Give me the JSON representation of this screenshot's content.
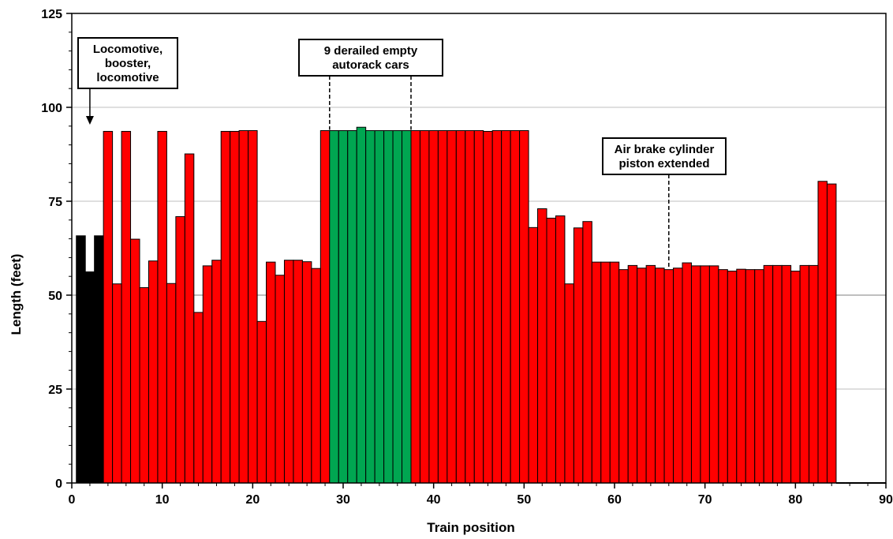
{
  "chart_data": {
    "type": "bar",
    "xlabel": "Train position",
    "ylabel": "Length (feet)",
    "xlim": [
      0,
      90
    ],
    "ylim": [
      0,
      125
    ],
    "x_ticks": [
      0,
      10,
      20,
      30,
      40,
      50,
      60,
      70,
      80,
      90
    ],
    "y_ticks": [
      0,
      25,
      50,
      75,
      100,
      125
    ],
    "grid": "horizontal at 25, 50, 75, 100",
    "colors": {
      "locomotive": "#000000",
      "car": "#ff0000",
      "derailed": "#00a651",
      "gridline": "#bfbfbf",
      "gridline_50": "#7f7f7f"
    },
    "positions": [
      1,
      2,
      3,
      4,
      5,
      6,
      7,
      8,
      9,
      10,
      11,
      12,
      13,
      14,
      15,
      16,
      17,
      18,
      19,
      20,
      21,
      22,
      23,
      24,
      25,
      26,
      27,
      28,
      29,
      30,
      31,
      32,
      33,
      34,
      35,
      36,
      37,
      38,
      39,
      40,
      41,
      42,
      43,
      44,
      45,
      46,
      47,
      48,
      49,
      50,
      51,
      52,
      53,
      54,
      55,
      56,
      57,
      58,
      59,
      60,
      61,
      62,
      63,
      64,
      65,
      66,
      67,
      68,
      69,
      70,
      71,
      72,
      73,
      74,
      75,
      76,
      77,
      78,
      79,
      80,
      81,
      82,
      83,
      84,
      85
    ],
    "lengths": [
      65.8,
      56.2,
      65.8,
      93.6,
      53,
      93.6,
      64.9,
      52,
      59.1,
      93.6,
      53.1,
      70.9,
      87.6,
      45.4,
      57.8,
      59.3,
      93.6,
      93.6,
      93.8,
      93.8,
      43,
      58.8,
      55.3,
      59.3,
      59.3,
      58.9,
      57.1,
      93.8,
      93.8,
      93.8,
      93.8,
      94.7,
      93.8,
      93.8,
      93.8,
      93.8,
      93.8,
      93.8,
      93.8,
      93.8,
      93.8,
      93.8,
      93.8,
      93.8,
      93.8,
      93.6,
      93.8,
      93.8,
      93.8,
      93.8,
      68,
      73,
      70.5,
      71.1,
      53,
      67.9,
      69.6,
      58.8,
      58.8,
      58.8,
      56.8,
      57.9,
      57.2,
      57.9,
      57.2,
      56.8,
      57.2,
      58.6,
      57.8,
      57.8,
      57.8,
      56.8,
      56.4,
      56.9,
      56.8,
      56.8,
      57.9,
      57.9,
      57.9,
      56.4,
      57.9,
      57.9,
      80.3,
      79.6,
      0
    ],
    "groups": [
      {
        "name": "locomotive",
        "from": 1,
        "to": 3
      },
      {
        "name": "derailed",
        "from": 29,
        "to": 37
      },
      {
        "name": "car",
        "from": 4,
        "to": 85
      }
    ],
    "annotations": [
      {
        "text": [
          "Locomotive,",
          "booster,",
          "locomotive"
        ],
        "points_to_x": 2
      },
      {
        "text": [
          "9 derailed empty",
          "autorack cars"
        ],
        "span_x": [
          29,
          38
        ]
      },
      {
        "text": [
          "Air brake cylinder",
          "piston extended"
        ],
        "points_to_x": 66
      }
    ]
  }
}
